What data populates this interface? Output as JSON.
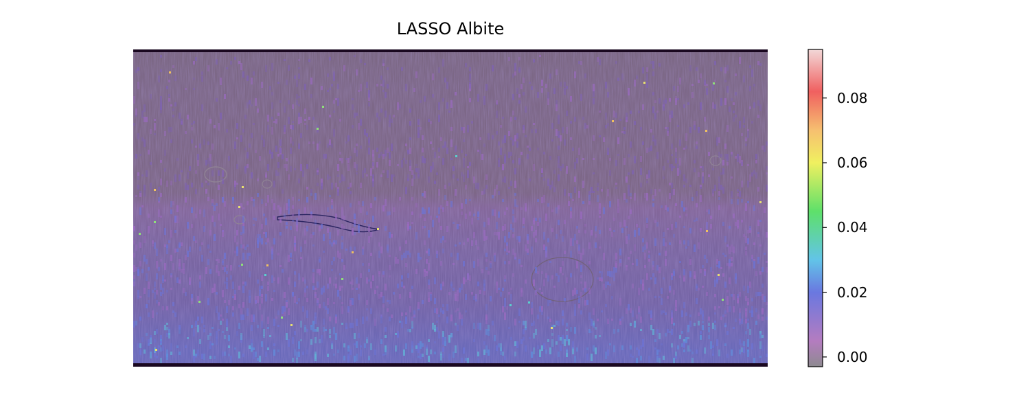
{
  "title": "LASSO Albite",
  "map": {
    "background_color": "#7a6782",
    "border_color": "#1a0820"
  },
  "colorbar": {
    "min": -0.003,
    "max": 0.095,
    "ticks": [
      {
        "value": 0.0,
        "label": "0.00"
      },
      {
        "value": 0.02,
        "label": "0.02"
      },
      {
        "value": 0.04,
        "label": "0.04"
      },
      {
        "value": 0.06,
        "label": "0.06"
      },
      {
        "value": 0.08,
        "label": "0.08"
      }
    ],
    "color_stops": [
      {
        "value": -0.003,
        "color": "#8e8a90"
      },
      {
        "value": 0.005,
        "color": "#b47cc0"
      },
      {
        "value": 0.02,
        "color": "#6a78e0"
      },
      {
        "value": 0.03,
        "color": "#62c4e8"
      },
      {
        "value": 0.045,
        "color": "#5ee06a"
      },
      {
        "value": 0.06,
        "color": "#f0f060"
      },
      {
        "value": 0.07,
        "color": "#f6c070"
      },
      {
        "value": 0.082,
        "color": "#f06060"
      },
      {
        "value": 0.095,
        "color": "#f2d8d8"
      }
    ]
  }
}
